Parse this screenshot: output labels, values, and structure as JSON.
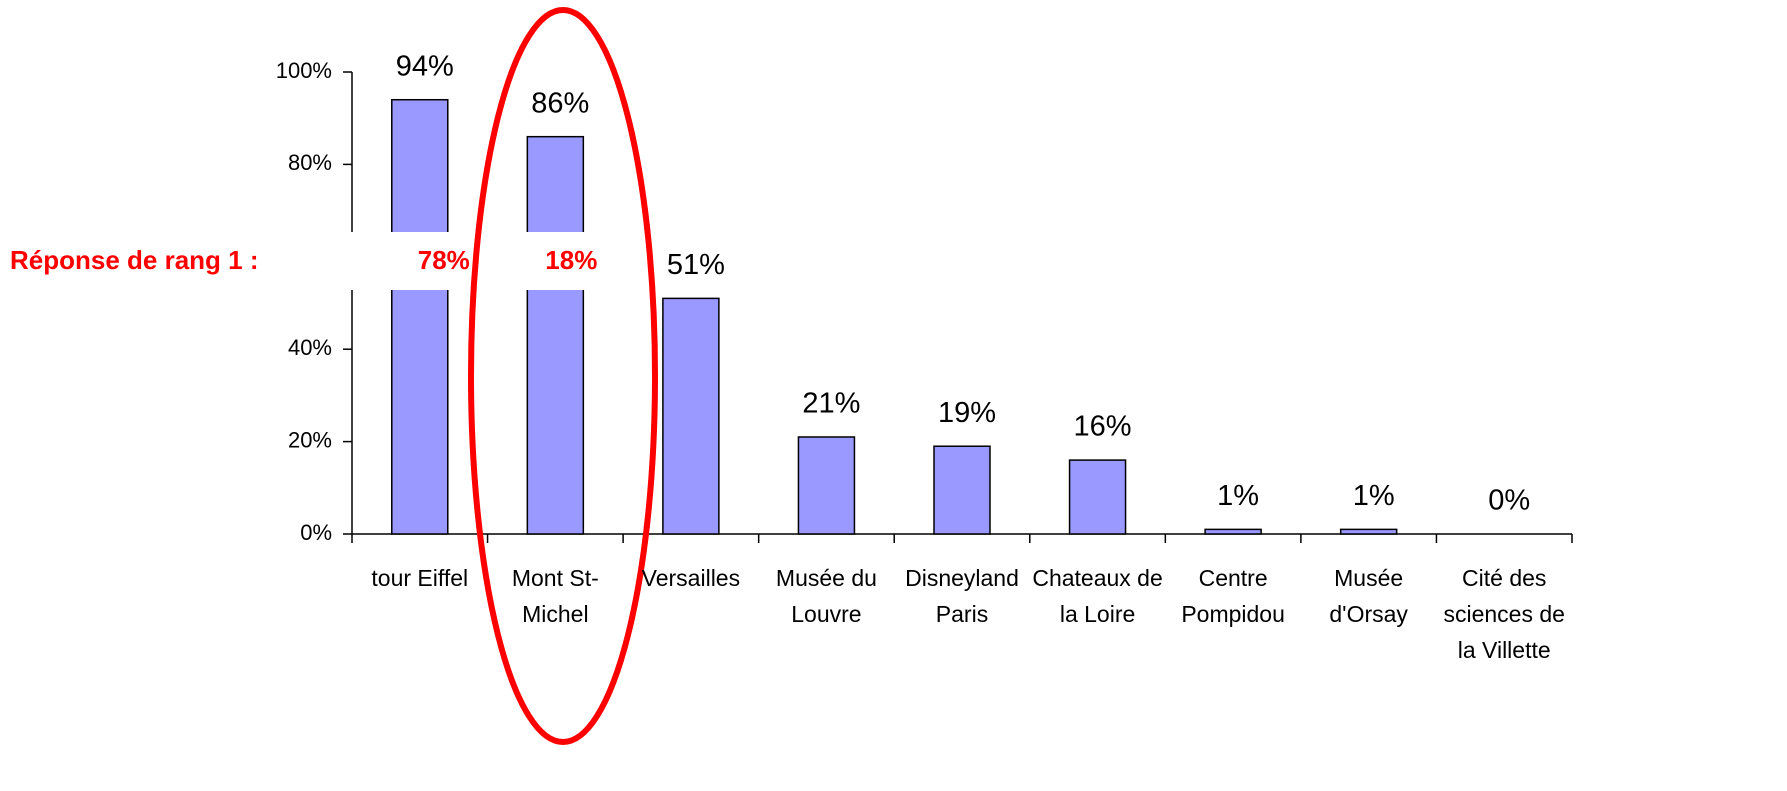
{
  "chart_data": {
    "type": "bar",
    "categories": [
      "tour Eiffel",
      "Mont St-Michel",
      "Versailles",
      "Musée du Louvre",
      "Disneyland Paris",
      "Chateaux de la Loire",
      "Centre Pompidou",
      "Musée d'Orsay",
      "Cité des sciences de la Villette"
    ],
    "values": [
      94,
      86,
      51,
      21,
      19,
      16,
      1,
      1,
      0
    ],
    "value_labels": [
      "94%",
      "86%",
      "51%",
      "21%",
      "19%",
      "16%",
      "1%",
      "1%",
      "0%"
    ],
    "color": "#9999ff",
    "ylim": [
      0,
      100
    ],
    "yticks": [
      {
        "value": 0,
        "label": "0%"
      },
      {
        "value": 20,
        "label": "20%"
      },
      {
        "value": 40,
        "label": "40%"
      },
      {
        "value": 80,
        "label": "80%"
      },
      {
        "value": 100,
        "label": "100%"
      }
    ],
    "annotation": {
      "label": "Réponse de rang 1 :",
      "values": [
        78,
        18
      ],
      "value_labels": [
        "78%",
        "18%"
      ]
    }
  }
}
